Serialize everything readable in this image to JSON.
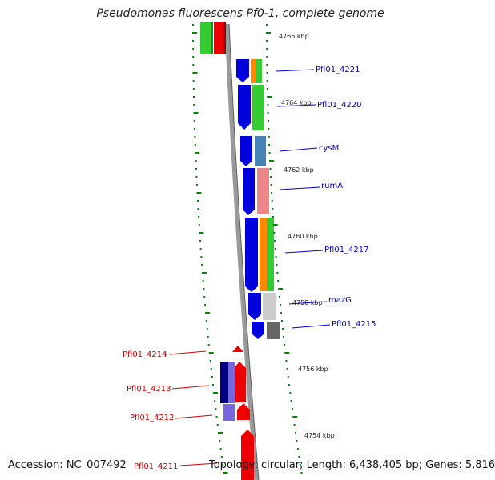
{
  "title": "Pseudomonas fluorescens Pf0-1, complete genome",
  "footer": {
    "accession": "Accession: NC_007492",
    "topology": "Topology: circular; Length: 6,438,405 bp; Genes: 5,816"
  },
  "kbp_labels": [
    "4766 kbp",
    "4764 kbp",
    "4762 kbp",
    "4760 kbp",
    "4758 kbp",
    "4756 kbp",
    "4754 kbp"
  ],
  "forward_genes": [
    "Pfl01_4221",
    "Pfl01_4220",
    "cysM",
    "rumA",
    "Pfl01_4217",
    "mazG",
    "Pfl01_4215"
  ],
  "reverse_genes": [
    "Pfl01_4214",
    "Pfl01_4213",
    "Pfl01_4212",
    "Pfl01_4211"
  ],
  "colors": {
    "forward_cds": "#0000dd",
    "reverse_cds": "#ee0000",
    "cog_green": "#33cc33",
    "cog_orange": "#ff8800",
    "cog_steelblue": "#4682b4",
    "cog_pink": "#ee8888",
    "cog_lightgray": "#cccccc",
    "cog_darkgray": "#666666",
    "cog_navy": "#000080",
    "cog_purple": "#7766dd",
    "backbone": "#888888",
    "tick": "#008800"
  }
}
